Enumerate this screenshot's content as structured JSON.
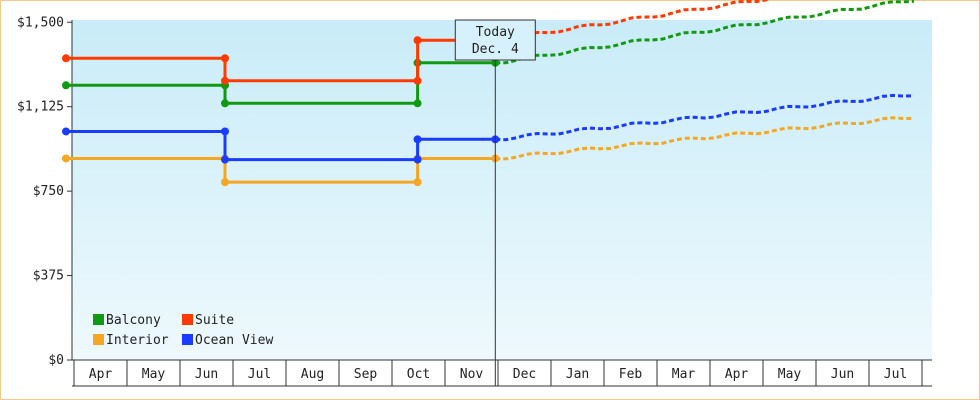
{
  "chart_data": {
    "type": "line",
    "x_categories": [
      "Apr",
      "May",
      "Jun",
      "Jul",
      "Aug",
      "Sep",
      "Oct",
      "Nov",
      "Dec",
      "Jan",
      "Feb",
      "Mar",
      "Apr",
      "May",
      "Jun",
      "Jul"
    ],
    "y_ticks": [
      "$0",
      "$375",
      "$750",
      "$1,125",
      "$1,500"
    ],
    "ylim": [
      0,
      1510
    ],
    "today_label": [
      "Today",
      "Dec. 4"
    ],
    "today_x": "Dec. 4",
    "legend_position": "bottom-left",
    "grid": false,
    "series": [
      {
        "name": "Balcony",
        "color": "#119911",
        "history": [
          [
            "Apr 1",
            1220
          ],
          [
            "Jul 1",
            1220
          ],
          [
            "Jul 1",
            1140
          ],
          [
            "Oct 20",
            1140
          ],
          [
            "Oct 20",
            1320
          ],
          [
            "Dec 4",
            1320
          ]
        ],
        "forecast": [
          [
            "Dec 4",
            1320
          ],
          [
            "Aug 1",
            1600
          ]
        ]
      },
      {
        "name": "Suite",
        "color": "#ff3a00",
        "history": [
          [
            "Apr 1",
            1340
          ],
          [
            "Jul 1",
            1340
          ],
          [
            "Jul 1",
            1240
          ],
          [
            "Oct 20",
            1240
          ],
          [
            "Oct 20",
            1420
          ],
          [
            "Dec 4",
            1420
          ]
        ],
        "forecast": [
          [
            "Dec 4",
            1420
          ],
          [
            "Aug 1",
            1705
          ]
        ]
      },
      {
        "name": "Interior",
        "color": "#f5a623",
        "history": [
          [
            "Apr 1",
            895
          ],
          [
            "Jul 1",
            895
          ],
          [
            "Jul 1",
            790
          ],
          [
            "Oct 20",
            790
          ],
          [
            "Oct 20",
            895
          ],
          [
            "Dec 4",
            895
          ]
        ],
        "forecast": [
          [
            "Dec 4",
            895
          ],
          [
            "Aug 1",
            1080
          ]
        ]
      },
      {
        "name": "Ocean View",
        "color": "#1a3cff",
        "history": [
          [
            "Apr 1",
            1015
          ],
          [
            "Jul 1",
            1015
          ],
          [
            "Jul 1",
            890
          ],
          [
            "Oct 20",
            890
          ],
          [
            "Oct 20",
            980
          ],
          [
            "Dec 4",
            980
          ]
        ],
        "forecast": [
          [
            "Dec 4",
            980
          ],
          [
            "Aug 1",
            1180
          ]
        ]
      }
    ]
  },
  "legend": {
    "items": [
      {
        "name": "Balcony",
        "color": "#119911"
      },
      {
        "name": "Suite",
        "color": "#ff3a00"
      },
      {
        "name": "Interior",
        "color": "#f5a623"
      },
      {
        "name": "Ocean View",
        "color": "#1a3cff"
      }
    ]
  }
}
